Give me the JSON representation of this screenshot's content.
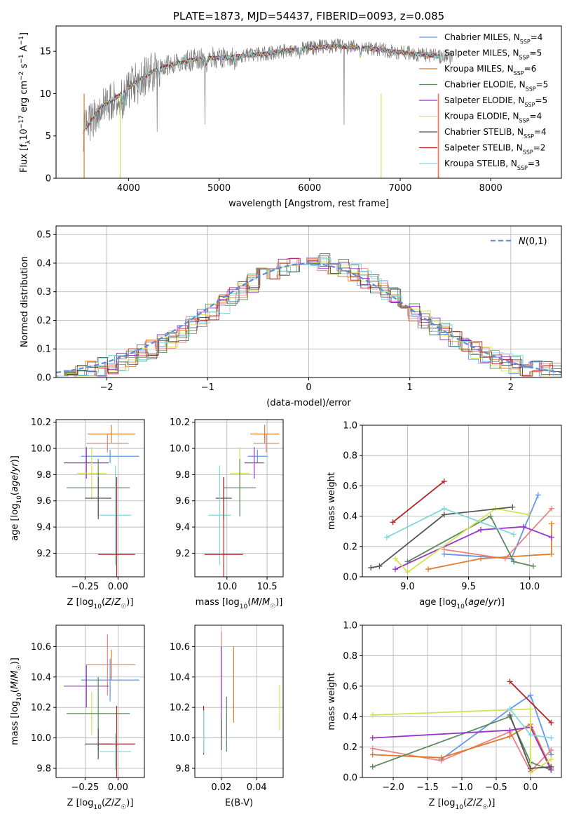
{
  "chart_data": [
    {
      "id": "spectrum",
      "type": "line",
      "title": "PLATE=1873, MJD=54437, FIBERID=0093, z=0.085",
      "xlabel": "wavelength [Angstrom, rest frame]",
      "ylabel": "Flux [fλ10⁻¹⁷ erg cm⁻² s⁻¹ A⁻¹]",
      "xlim": [
        3200,
        8780
      ],
      "ylim": [
        0,
        18
      ],
      "xticks": [
        4000,
        5000,
        6000,
        7000,
        8000
      ],
      "yticks": [
        0,
        5,
        10,
        15
      ],
      "grid": false,
      "legend_position": "right",
      "continuum": {
        "x": [
          3500,
          3700,
          3900,
          4100,
          4300,
          4500,
          4700,
          4900,
          5100,
          5300,
          5500,
          5700,
          5900,
          6100,
          6300,
          6500,
          6700,
          6900,
          7100,
          7300,
          7500
        ],
        "y": [
          5.5,
          8.5,
          9.8,
          11.5,
          12.8,
          13.5,
          14.0,
          14.2,
          14.3,
          14.5,
          14.7,
          15.0,
          15.3,
          15.5,
          15.6,
          15.5,
          15.3,
          15.0,
          14.8,
          14.6,
          14.3
        ]
      },
      "series": [
        {
          "name": "Chabrier MILES, N_SSP=4",
          "color": "#6495ed"
        },
        {
          "name": "Salpeter MILES, N_SSP=5",
          "color": "#f08080"
        },
        {
          "name": "Kroupa MILES, N_SSP=6",
          "color": "#e07b2a"
        },
        {
          "name": "Chabrier ELODIE, N_SSP=5",
          "color": "#5a8a5e"
        },
        {
          "name": "Salpeter ELODIE, N_SSP=5",
          "color": "#9932cc"
        },
        {
          "name": "Kroupa ELODIE, N_SSP=4",
          "color": "#d4e157"
        },
        {
          "name": "Chabrier STELIB, N_SSP=4",
          "color": "#555555"
        },
        {
          "name": "Salpeter STELIB, N_SSP=2",
          "color": "#b22222"
        },
        {
          "name": "Kroupa STELIB, N_SSP=3",
          "color": "#7fd8dc"
        }
      ],
      "legend_labels": [
        {
          "main": "Chabrier MILES, N",
          "sub": "SSP",
          "tail": "=4"
        },
        {
          "main": "Salpeter MILES, N",
          "sub": "SSP",
          "tail": "=5"
        },
        {
          "main": "Kroupa MILES, N",
          "sub": "SSP",
          "tail": "=6"
        },
        {
          "main": "Chabrier ELODIE, N",
          "sub": "SSP",
          "tail": "=5"
        },
        {
          "main": "Salpeter ELODIE, N",
          "sub": "SSP",
          "tail": "=5"
        },
        {
          "main": "Kroupa ELODIE, N",
          "sub": "SSP",
          "tail": "=4"
        },
        {
          "main": "Chabrier STELIB, N",
          "sub": "SSP",
          "tail": "=4"
        },
        {
          "main": "Salpeter STELIB, N",
          "sub": "SSP",
          "tail": "=2"
        },
        {
          "main": "Kroupa STELIB, N",
          "sub": "SSP",
          "tail": "=3"
        }
      ]
    },
    {
      "id": "residuals",
      "type": "histogram",
      "xlabel": "(data-model)/error",
      "ylabel": "Normed distribution",
      "xlim": [
        -2.5,
        2.5
      ],
      "ylim": [
        0,
        0.53
      ],
      "xticks": [
        -2,
        -1,
        0,
        1,
        2
      ],
      "xtick_labels": [
        "−2",
        "−1",
        "0",
        "1",
        "2"
      ],
      "yticks": [
        0.0,
        0.1,
        0.2,
        0.3,
        0.4,
        0.5
      ],
      "ytick_labels": [
        "0.0",
        "0.1",
        "0.2",
        "0.3",
        "0.4",
        "0.5"
      ],
      "grid": true,
      "bin_width": 0.1,
      "curve_label": "N(0,1)",
      "curve_color": "#5b8dd6"
    },
    {
      "id": "age_vs_Z",
      "type": "errorbar",
      "xlabel": "Z [log10(Z/Z☉)]",
      "ylabel": "age  [log10(age/yr)]",
      "xlim": [
        -0.47,
        0.2
      ],
      "ylim": [
        9.02,
        10.22
      ],
      "xticks": [
        -0.25,
        0.0
      ],
      "xtick_labels": [
        "−0.25",
        "0.00"
      ],
      "yticks": [
        9.2,
        9.4,
        9.6,
        9.8,
        10.0,
        10.2
      ],
      "grid": true,
      "points": [
        {
          "x": -0.05,
          "y": 10.11,
          "xerr": 0.18,
          "yerr": 0.07,
          "color": "#e07b2a"
        },
        {
          "x": -0.08,
          "y": 10.04,
          "xerr": 0.16,
          "yerr": 0.07,
          "color": "#f08080"
        },
        {
          "x": -0.06,
          "y": 9.94,
          "xerr": 0.22,
          "yerr": 0.05,
          "color": "#6495ed"
        },
        {
          "x": -0.24,
          "y": 9.89,
          "xerr": 0.17,
          "yerr": 0.12,
          "color": "#9932cc"
        },
        {
          "x": -0.2,
          "y": 9.81,
          "xerr": 0.11,
          "yerr": 0.2,
          "color": "#d4e157"
        },
        {
          "x": -0.15,
          "y": 9.7,
          "xerr": 0.24,
          "yerr": 0.22,
          "color": "#5a8a5e"
        },
        {
          "x": -0.15,
          "y": 9.62,
          "xerr": 0.1,
          "yerr": 0.16,
          "color": "#555555"
        },
        {
          "x": -0.02,
          "y": 9.49,
          "xerr": 0.12,
          "yerr": 0.38,
          "color": "#7fd8dc"
        },
        {
          "x": -0.01,
          "y": 9.19,
          "xerr": 0.14,
          "yerr": 0.59,
          "color": "#b22222"
        }
      ]
    },
    {
      "id": "age_vs_mass",
      "type": "errorbar",
      "xlabel": "mass [log10(M/M☉)]",
      "ylabel": "",
      "xlim": [
        9.6,
        10.7
      ],
      "ylim": [
        9.02,
        10.22
      ],
      "xticks": [
        10.0,
        10.5
      ],
      "xtick_labels": [
        "10.0",
        "10.5"
      ],
      "yticks": [
        9.2,
        9.4,
        9.6,
        9.8,
        10.0,
        10.2
      ],
      "grid": true,
      "points": [
        {
          "x": 10.47,
          "y": 10.11,
          "xerr": 0.18,
          "yerr": 0.07,
          "color": "#e07b2a"
        },
        {
          "x": 10.49,
          "y": 10.04,
          "xerr": 0.16,
          "yerr": 0.07,
          "color": "#f08080"
        },
        {
          "x": 10.38,
          "y": 9.94,
          "xerr": 0.12,
          "yerr": 0.05,
          "color": "#6495ed"
        },
        {
          "x": 10.34,
          "y": 9.89,
          "xerr": 0.12,
          "yerr": 0.12,
          "color": "#9932cc"
        },
        {
          "x": 10.16,
          "y": 9.81,
          "xerr": 0.12,
          "yerr": 0.2,
          "color": "#d4e157"
        },
        {
          "x": 10.16,
          "y": 9.7,
          "xerr": 0.2,
          "yerr": 0.22,
          "color": "#5a8a5e"
        },
        {
          "x": 9.96,
          "y": 9.62,
          "xerr": 0.1,
          "yerr": 0.16,
          "color": "#555555"
        },
        {
          "x": 9.91,
          "y": 9.49,
          "xerr": 0.14,
          "yerr": 0.38,
          "color": "#7fd8dc"
        },
        {
          "x": 9.96,
          "y": 9.19,
          "xerr": 0.24,
          "yerr": 0.59,
          "color": "#b22222"
        }
      ]
    },
    {
      "id": "massweight_vs_age",
      "type": "line",
      "xlabel": "age  [log10(age/yr)]",
      "ylabel": "mass weight",
      "xlim": [
        8.63,
        10.26
      ],
      "ylim": [
        0.0,
        1.0
      ],
      "xticks": [
        9.0,
        9.5,
        10.0
      ],
      "xtick_labels": [
        "9.0",
        "9.5",
        "10.0"
      ],
      "yticks": [
        0.0,
        0.2,
        0.4,
        0.6,
        0.8,
        1.0
      ],
      "grid": true,
      "series": [
        {
          "color": "#6495ed",
          "x": [
            9.3,
            9.85,
            10.07
          ],
          "y": [
            0.15,
            0.12,
            0.54
          ]
        },
        {
          "color": "#f08080",
          "x": [
            9.3,
            9.8,
            10.18
          ],
          "y": [
            0.18,
            0.12,
            0.45
          ]
        },
        {
          "color": "#e07b2a",
          "x": [
            9.17,
            9.6,
            10.18,
            10.18
          ],
          "y": [
            0.05,
            0.12,
            0.15,
            0.35
          ]
        },
        {
          "color": "#5a8a5e",
          "x": [
            9.0,
            9.68,
            9.87,
            10.03
          ],
          "y": [
            0.1,
            0.4,
            0.1,
            0.07
          ]
        },
        {
          "color": "#9932cc",
          "x": [
            8.9,
            9.6,
            9.95,
            10.18
          ],
          "y": [
            0.05,
            0.31,
            0.33,
            0.26
          ]
        },
        {
          "color": "#d4e157",
          "x": [
            8.9,
            9.0,
            9.72,
            9.99
          ],
          "y": [
            0.12,
            0.03,
            0.45,
            0.41
          ]
        },
        {
          "color": "#555555",
          "x": [
            8.7,
            8.77,
            9.3,
            9.86
          ],
          "y": [
            0.06,
            0.07,
            0.41,
            0.46
          ]
        },
        {
          "color": "#b22222",
          "x": [
            8.88,
            9.3
          ],
          "y": [
            0.36,
            0.63
          ]
        },
        {
          "color": "#7fd8dc",
          "x": [
            8.83,
            9.3,
            9.87
          ],
          "y": [
            0.26,
            0.45,
            0.28
          ]
        }
      ]
    },
    {
      "id": "mass_vs_Z",
      "type": "errorbar",
      "xlabel": "Z [log10(Z/Z☉)]",
      "ylabel": "mass [log10(M/M☉)]",
      "xlim": [
        -0.47,
        0.2
      ],
      "ylim": [
        9.74,
        10.74
      ],
      "xticks": [
        -0.25,
        0.0
      ],
      "xtick_labels": [
        "−0.25",
        "0.00"
      ],
      "yticks": [
        9.8,
        10.0,
        10.2,
        10.4,
        10.6
      ],
      "grid": true,
      "points": [
        {
          "x": -0.05,
          "y": 10.48,
          "xerr": 0.18,
          "yerr": 0.1,
          "color": "#e07b2a"
        },
        {
          "x": -0.08,
          "y": 10.48,
          "xerr": 0.16,
          "yerr": 0.2,
          "color": "#f08080"
        },
        {
          "x": -0.06,
          "y": 10.38,
          "xerr": 0.22,
          "yerr": 0.14,
          "color": "#6495ed"
        },
        {
          "x": -0.24,
          "y": 10.34,
          "xerr": 0.17,
          "yerr": 0.14,
          "color": "#9932cc"
        },
        {
          "x": -0.2,
          "y": 10.16,
          "xerr": 0.11,
          "yerr": 0.14,
          "color": "#d4e157"
        },
        {
          "x": -0.15,
          "y": 10.16,
          "xerr": 0.24,
          "yerr": 0.24,
          "color": "#5a8a5e"
        },
        {
          "x": -0.15,
          "y": 9.96,
          "xerr": 0.1,
          "yerr": 0.1,
          "color": "#555555"
        },
        {
          "x": -0.02,
          "y": 9.91,
          "xerr": 0.12,
          "yerr": 0.12,
          "color": "#7fd8dc"
        },
        {
          "x": -0.01,
          "y": 9.96,
          "xerr": 0.14,
          "yerr": 0.25,
          "color": "#b22222"
        }
      ]
    },
    {
      "id": "mass_vs_ebv",
      "type": "errorbar",
      "xlabel": "E(B-V)",
      "ylabel": "",
      "xlim": [
        0.005,
        0.055
      ],
      "ylim": [
        9.74,
        10.74
      ],
      "xticks": [
        0.02,
        0.04
      ],
      "xtick_labels": [
        "0.02",
        "0.04"
      ],
      "yticks": [
        9.8,
        10.0,
        10.2,
        10.4,
        10.6
      ],
      "grid": true,
      "points": [
        {
          "x": 0.027,
          "y": 10.35,
          "xerr": 0,
          "yerr": 0.25,
          "color": "#e07b2a"
        },
        {
          "x": 0.02,
          "y": 10.45,
          "xerr": 0,
          "yerr": 0.25,
          "color": "#f08080"
        },
        {
          "x": 0.02,
          "y": 10.3,
          "xerr": 0,
          "yerr": 0.3,
          "color": "#9932cc"
        },
        {
          "x": 0.023,
          "y": 10.09,
          "xerr": 0,
          "yerr": 0.18,
          "color": "#5a8a5e"
        },
        {
          "x": 0.02,
          "y": 10.02,
          "xerr": 0,
          "yerr": 0.1,
          "color": "#555555"
        },
        {
          "x": 0.053,
          "y": 10.2,
          "xerr": 0,
          "yerr": 0.15,
          "color": "#d4e157"
        },
        {
          "x": 0.01,
          "y": 10.05,
          "xerr": 0,
          "yerr": 0.16,
          "color": "#b22222"
        },
        {
          "x": 0.01,
          "y": 10.04,
          "xerr": 0,
          "yerr": 0.14,
          "color": "#7fd8dc"
        }
      ]
    },
    {
      "id": "massweight_vs_Z",
      "type": "line",
      "xlabel": "Z [log10(Z/Z☉)]",
      "ylabel": "mass weight",
      "xlim": [
        -2.45,
        0.45
      ],
      "ylim": [
        0.0,
        1.0
      ],
      "xticks": [
        -2.0,
        -1.5,
        -1.0,
        -0.5,
        0.0
      ],
      "xtick_labels": [
        "−2.0",
        "−1.5",
        "−1.0",
        "−0.5",
        "0.0"
      ],
      "yticks": [
        0.0,
        0.2,
        0.4,
        0.6,
        0.8,
        1.0
      ],
      "grid": true,
      "series": [
        {
          "color": "#6495ed",
          "x": [
            -1.3,
            -0.3,
            0.0,
            0.3
          ],
          "y": [
            0.12,
            0.45,
            0.54,
            0.15
          ]
        },
        {
          "color": "#f08080",
          "x": [
            -2.3,
            -1.3,
            -0.3,
            0.0,
            0.3
          ],
          "y": [
            0.19,
            0.11,
            0.3,
            0.04,
            0.18
          ]
        },
        {
          "color": "#e07b2a",
          "x": [
            -2.3,
            -1.3,
            -0.3,
            0.0,
            0.3
          ],
          "y": [
            0.15,
            0.13,
            0.27,
            0.35,
            0.06
          ]
        },
        {
          "color": "#5a8a5e",
          "x": [
            -2.3,
            -0.3,
            0.0,
            0.3
          ],
          "y": [
            0.07,
            0.4,
            0.1,
            0.05
          ]
        },
        {
          "color": "#9932cc",
          "x": [
            -2.3,
            -0.3,
            0.0,
            0.3
          ],
          "y": [
            0.26,
            0.31,
            0.33,
            0.05
          ]
        },
        {
          "color": "#d4e157",
          "x": [
            -2.3,
            0.0,
            0.0,
            0.3
          ],
          "y": [
            0.41,
            0.45,
            0.03,
            0.12
          ]
        },
        {
          "color": "#555555",
          "x": [
            -0.3,
            0.0,
            0.3
          ],
          "y": [
            0.41,
            0.06,
            0.07
          ]
        },
        {
          "color": "#b22222",
          "x": [
            -0.3,
            0.3
          ],
          "y": [
            0.63,
            0.36
          ]
        },
        {
          "color": "#7fd8dc",
          "x": [
            -0.3,
            0.0,
            0.3
          ],
          "y": [
            0.45,
            0.28,
            0.26
          ]
        }
      ]
    }
  ]
}
